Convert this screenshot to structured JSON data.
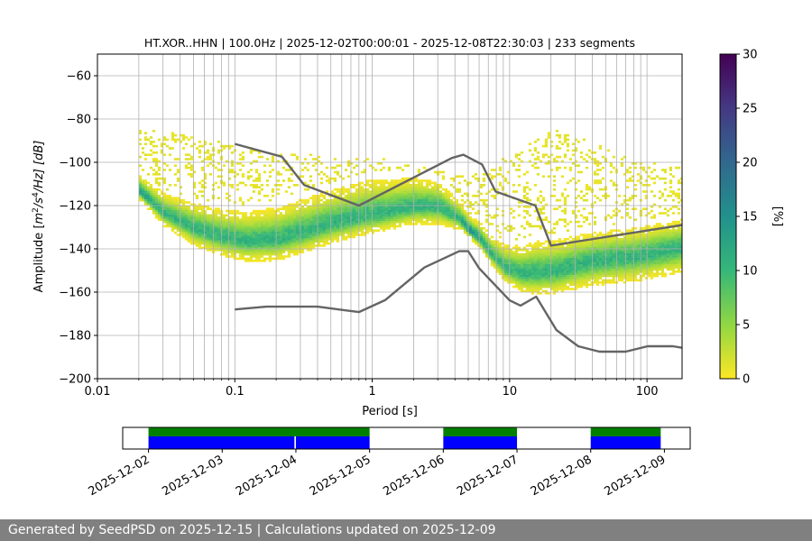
{
  "footer": {
    "text": "Generated by SeedPSD on 2025-12-15 | Calculations updated on 2025-12-09"
  },
  "colors": {
    "model_lines": "#646464",
    "grid": "#b0b0b0",
    "data_coverage": "#0000ff",
    "gap_coverage": "#007f00",
    "colormap": [
      "#fde725",
      "#90d743",
      "#35b779",
      "#21918c",
      "#31688e",
      "#443983",
      "#440154"
    ]
  },
  "chart_data": [
    {
      "type": "heatmap",
      "title": "HT.XOR..HHN | 100.0Hz | 2025-12-02T00:00:01 - 2025-12-08T22:30:03 | 233 segments",
      "xlabel": "Period [s]",
      "ylabel_parts": {
        "prefix": "Amplitude [",
        "m": "m",
        "exp2": "2",
        "s": "/s",
        "exp4": "4",
        "suffix": "/Hz] [dB]"
      },
      "xscale": "log",
      "xlim": [
        0.01,
        180
      ],
      "ylim": [
        -200,
        -50
      ],
      "xticks": [
        0.01,
        0.1,
        1,
        10,
        100
      ],
      "xtick_labels": [
        "0.01",
        "0.1",
        "1",
        "10",
        "100"
      ],
      "yticks": [
        -60,
        -80,
        -100,
        -120,
        -140,
        -160,
        -180,
        -200
      ],
      "ytick_labels": [
        "−60",
        "−80",
        "−100",
        "−120",
        "−140",
        "−160",
        "−180",
        "−200"
      ],
      "grid": true,
      "colorbar": {
        "label": "[%]",
        "range": [
          0,
          30
        ],
        "ticks": [
          0,
          5,
          10,
          15,
          20,
          25,
          30
        ],
        "tick_labels": [
          "0",
          "5",
          "10",
          "15",
          "20",
          "25",
          "30"
        ]
      },
      "psd_median": [
        [
          0.02,
          -114
        ],
        [
          0.03,
          -124
        ],
        [
          0.05,
          -131
        ],
        [
          0.08,
          -135
        ],
        [
          0.12,
          -137
        ],
        [
          0.2,
          -136
        ],
        [
          0.3,
          -133
        ],
        [
          0.5,
          -129
        ],
        [
          0.8,
          -126
        ],
        [
          1.2,
          -124
        ],
        [
          2,
          -121
        ],
        [
          3,
          -121
        ],
        [
          4.3,
          -127
        ],
        [
          5,
          -132
        ],
        [
          6,
          -136
        ],
        [
          7,
          -142
        ],
        [
          9,
          -149
        ],
        [
          12,
          -152
        ],
        [
          20,
          -151
        ],
        [
          40,
          -146
        ],
        [
          80,
          -144
        ],
        [
          180,
          -140
        ]
      ],
      "psd_spread_db": [
        [
          0.02,
          9,
          5
        ],
        [
          0.05,
          14,
          10
        ],
        [
          0.2,
          18,
          12
        ],
        [
          1,
          20,
          10
        ],
        [
          3,
          14,
          10
        ],
        [
          5,
          8,
          4
        ],
        [
          7,
          10,
          6
        ],
        [
          15,
          18,
          12
        ],
        [
          40,
          16,
          14
        ],
        [
          180,
          16,
          14
        ]
      ],
      "psd_upper_band": [
        [
          0.02,
          -88
        ],
        [
          0.05,
          -91
        ],
        [
          0.1,
          -96
        ],
        [
          0.5,
          -101
        ],
        [
          1,
          -101
        ],
        [
          2,
          -105
        ],
        [
          5,
          -110
        ],
        [
          10,
          -100
        ],
        [
          20,
          -88
        ],
        [
          30,
          -90
        ],
        [
          60,
          -100
        ],
        [
          180,
          -106
        ]
      ],
      "nhnm": [
        [
          0.1,
          -91.5
        ],
        [
          0.22,
          -97.4
        ],
        [
          0.32,
          -110.5
        ],
        [
          0.8,
          -120
        ],
        [
          3.8,
          -98
        ],
        [
          4.6,
          -96.5
        ],
        [
          6.3,
          -101
        ],
        [
          7.9,
          -113.5
        ],
        [
          15.4,
          -120
        ],
        [
          20,
          -138.5
        ],
        [
          180,
          -129
        ]
      ],
      "nlnm": [
        [
          0.1,
          -168
        ],
        [
          0.17,
          -166.7
        ],
        [
          0.4,
          -166.7
        ],
        [
          0.8,
          -169.2
        ],
        [
          1.24,
          -163.7
        ],
        [
          2.4,
          -148.6
        ],
        [
          4.3,
          -141.1
        ],
        [
          5,
          -141.1
        ],
        [
          6,
          -149
        ],
        [
          10,
          -163.8
        ],
        [
          12,
          -166.2
        ],
        [
          15.6,
          -162.1
        ],
        [
          21.9,
          -177.5
        ],
        [
          31.6,
          -185
        ],
        [
          45,
          -187.5
        ],
        [
          70,
          -187.5
        ],
        [
          101,
          -185
        ],
        [
          154,
          -185
        ],
        [
          180,
          -185.7
        ]
      ]
    },
    {
      "type": "timeline",
      "xticks": [
        "2025-12-02",
        "2025-12-03",
        "2025-12-04",
        "2025-12-05",
        "2025-12-06",
        "2025-12-07",
        "2025-12-08",
        "2025-12-09"
      ],
      "xlim_days": [
        -0.35,
        7.35
      ],
      "data_coverage_days": [
        [
          0.0,
          1.98
        ],
        [
          2.0,
          3.0
        ],
        [
          4.0,
          5.0
        ],
        [
          6.0,
          6.95
        ]
      ],
      "gap_coverage_days": [
        [
          0.0,
          3.0
        ],
        [
          4.0,
          5.0
        ],
        [
          6.0,
          6.95
        ]
      ]
    }
  ]
}
